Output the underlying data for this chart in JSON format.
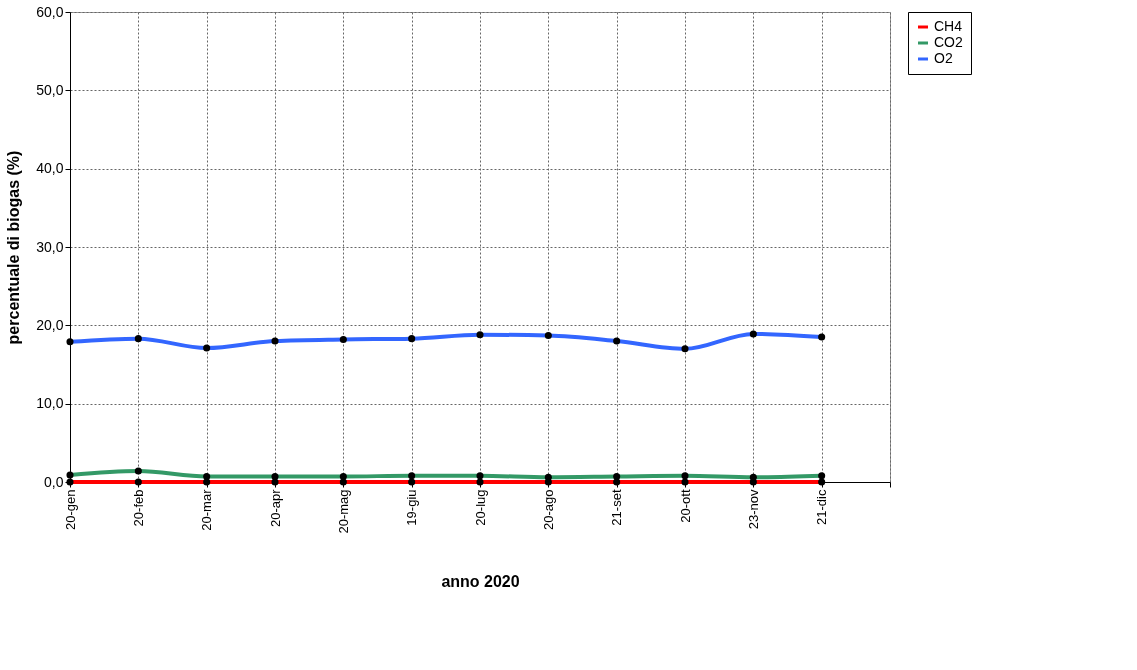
{
  "chart_data": {
    "type": "line",
    "xlabel": "anno 2020",
    "ylabel": "percentuale di biogas (%)",
    "categories": [
      "20-gen",
      "20-feb",
      "20-mar",
      "20-apr",
      "20-mag",
      "19-giu",
      "20-lug",
      "20-ago",
      "21-set",
      "20-ott",
      "23-nov",
      "21-dic",
      null
    ],
    "series": [
      {
        "name": "CH4",
        "color": "#ff0000",
        "values": [
          0,
          0,
          0,
          0,
          0,
          0,
          0,
          0,
          0,
          0,
          0,
          0,
          null
        ]
      },
      {
        "name": "CO2",
        "color": "#339966",
        "values": [
          0.9,
          1.4,
          0.7,
          0.7,
          0.7,
          0.8,
          0.8,
          0.6,
          0.7,
          0.8,
          0.6,
          0.8,
          null
        ]
      },
      {
        "name": "O2",
        "color": "#3366ff",
        "values": [
          17.9,
          18.3,
          17.1,
          18.0,
          18.2,
          18.3,
          18.8,
          18.7,
          18.0,
          17.0,
          18.9,
          18.5,
          null
        ]
      }
    ],
    "ylim": [
      0,
      60
    ],
    "yticks": [
      {
        "value": 0,
        "label": "0,0"
      },
      {
        "value": 10,
        "label": "10,0"
      },
      {
        "value": 20,
        "label": "20,0"
      },
      {
        "value": 30,
        "label": "30,0"
      },
      {
        "value": 40,
        "label": "40,0"
      },
      {
        "value": 50,
        "label": "50,0"
      },
      {
        "value": 60,
        "label": "60,0"
      }
    ],
    "grid": true,
    "legend": "right",
    "marker": "circle",
    "line_style": "solid"
  }
}
